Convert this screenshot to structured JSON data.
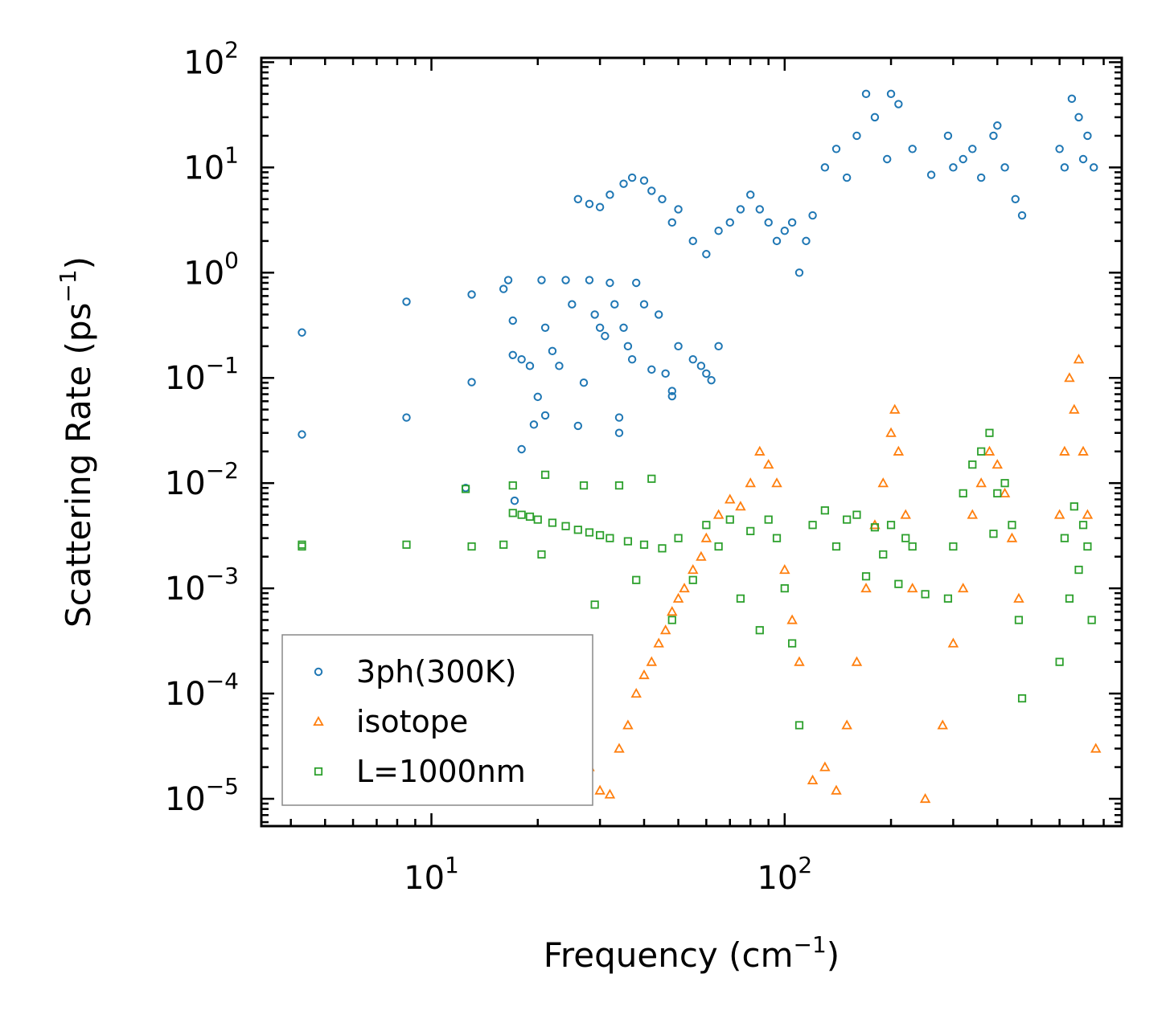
{
  "chart_data": {
    "type": "scatter",
    "title": "",
    "xlabel": "Frequency (cm",
    "xlabel_sup": "−1",
    "xlabel_end": ")",
    "ylabel": "Scattering Rate (ps",
    "ylabel_sup": "−1",
    "ylabel_end": ")",
    "xscale": "log",
    "yscale": "log",
    "xlim": [
      3.3,
      900
    ],
    "ylim": [
      5.5e-06,
      110
    ],
    "xticks": [
      {
        "value": 10,
        "base": "10",
        "exp": "1"
      },
      {
        "value": 100,
        "base": "10",
        "exp": "2"
      }
    ],
    "yticks": [
      {
        "value": 100,
        "base": "10",
        "exp": "2"
      },
      {
        "value": 10,
        "base": "10",
        "exp": "1"
      },
      {
        "value": 1,
        "base": "10",
        "exp": "0"
      },
      {
        "value": 0.1,
        "base": "10",
        "exp": "−1"
      },
      {
        "value": 0.01,
        "base": "10",
        "exp": "−2"
      },
      {
        "value": 0.001,
        "base": "10",
        "exp": "−3"
      },
      {
        "value": 0.0001,
        "base": "10",
        "exp": "−4"
      },
      {
        "value": 1e-05,
        "base": "10",
        "exp": "−5"
      }
    ],
    "legend_position": "lower-left",
    "series": [
      {
        "name": "3ph(300K)",
        "marker": "circle",
        "color": "#1f77b4",
        "points": [
          [
            4.3,
            0.27
          ],
          [
            4.3,
            0.029
          ],
          [
            8.5,
            0.53
          ],
          [
            8.5,
            0.042
          ],
          [
            12.5,
            0.009
          ],
          [
            13,
            0.62
          ],
          [
            13,
            0.091
          ],
          [
            16,
            0.7
          ],
          [
            16.5,
            0.85
          ],
          [
            17,
            0.35
          ],
          [
            17,
            0.165
          ],
          [
            17.2,
            0.0068
          ],
          [
            18,
            0.15
          ],
          [
            18,
            0.021
          ],
          [
            19,
            0.13
          ],
          [
            19.5,
            0.036
          ],
          [
            20,
            0.066
          ],
          [
            20.5,
            0.85
          ],
          [
            21,
            0.3
          ],
          [
            21,
            0.044
          ],
          [
            22,
            0.18
          ],
          [
            23,
            0.13
          ],
          [
            24,
            0.85
          ],
          [
            25,
            0.5
          ],
          [
            26,
            0.035
          ],
          [
            27,
            0.09
          ],
          [
            28,
            0.85
          ],
          [
            29,
            0.4
          ],
          [
            30,
            0.3
          ],
          [
            31,
            0.25
          ],
          [
            32,
            0.8
          ],
          [
            33,
            0.5
          ],
          [
            34,
            0.042
          ],
          [
            34,
            0.03
          ],
          [
            35,
            0.3
          ],
          [
            36,
            0.2
          ],
          [
            37,
            0.15
          ],
          [
            38,
            0.8
          ],
          [
            40,
            0.5
          ],
          [
            42,
            0.12
          ],
          [
            44,
            0.4
          ],
          [
            46,
            0.11
          ],
          [
            48,
            0.067
          ],
          [
            48,
            0.075
          ],
          [
            50,
            0.2
          ],
          [
            55,
            0.15
          ],
          [
            58,
            0.13
          ],
          [
            60,
            0.11
          ],
          [
            62,
            0.095
          ],
          [
            65,
            0.2
          ],
          [
            26,
            5.0
          ],
          [
            28,
            4.5
          ],
          [
            30,
            4.2
          ],
          [
            32,
            5.5
          ],
          [
            35,
            7.0
          ],
          [
            37,
            8.0
          ],
          [
            40,
            7.5
          ],
          [
            42,
            6.0
          ],
          [
            45,
            5.0
          ],
          [
            48,
            3.0
          ],
          [
            50,
            4.0
          ],
          [
            55,
            2.0
          ],
          [
            60,
            1.5
          ],
          [
            65,
            2.5
          ],
          [
            70,
            3.0
          ],
          [
            75,
            4.0
          ],
          [
            80,
            5.5
          ],
          [
            85,
            4.0
          ],
          [
            90,
            3.0
          ],
          [
            95,
            2.0
          ],
          [
            100,
            2.5
          ],
          [
            105,
            3.0
          ],
          [
            110,
            1.0
          ],
          [
            115,
            2.0
          ],
          [
            120,
            3.5
          ],
          [
            130,
            10.0
          ],
          [
            140,
            15.0
          ],
          [
            150,
            8.0
          ],
          [
            160,
            20.0
          ],
          [
            170,
            50.0
          ],
          [
            180,
            30.0
          ],
          [
            195,
            12.0
          ],
          [
            200,
            50.0
          ],
          [
            210,
            40.0
          ],
          [
            230,
            15.0
          ],
          [
            260,
            8.5
          ],
          [
            290,
            20.0
          ],
          [
            300,
            10.0
          ],
          [
            320,
            12.0
          ],
          [
            340,
            15.0
          ],
          [
            360,
            8.0
          ],
          [
            390,
            20.0
          ],
          [
            400,
            25.0
          ],
          [
            420,
            10.0
          ],
          [
            450,
            5.0
          ],
          [
            470,
            3.5
          ],
          [
            600,
            15.0
          ],
          [
            620,
            10.0
          ],
          [
            650,
            45.0
          ],
          [
            680,
            30.0
          ],
          [
            700,
            12.0
          ],
          [
            720,
            20.0
          ],
          [
            750,
            10.0
          ]
        ]
      },
      {
        "name": "isotope",
        "marker": "triangle",
        "color": "#ff7f0e",
        "points": [
          [
            27,
            1.2e-05
          ],
          [
            28,
            2e-05
          ],
          [
            30,
            1.2e-05
          ],
          [
            32,
            1.1e-05
          ],
          [
            34,
            3e-05
          ],
          [
            36,
            5e-05
          ],
          [
            38,
            0.0001
          ],
          [
            40,
            0.00015
          ],
          [
            42,
            0.0002
          ],
          [
            44,
            0.0003
          ],
          [
            46,
            0.0004
          ],
          [
            48,
            0.0006
          ],
          [
            50,
            0.0008
          ],
          [
            52,
            0.001
          ],
          [
            55,
            0.0015
          ],
          [
            58,
            0.002
          ],
          [
            60,
            0.003
          ],
          [
            65,
            0.005
          ],
          [
            70,
            0.007
          ],
          [
            75,
            0.006
          ],
          [
            80,
            0.01
          ],
          [
            85,
            0.02
          ],
          [
            90,
            0.015
          ],
          [
            95,
            0.01
          ],
          [
            100,
            0.0015
          ],
          [
            105,
            0.0005
          ],
          [
            110,
            0.0002
          ],
          [
            120,
            1.5e-05
          ],
          [
            130,
            2e-05
          ],
          [
            140,
            1.2e-05
          ],
          [
            150,
            5e-05
          ],
          [
            160,
            0.0002
          ],
          [
            170,
            0.001
          ],
          [
            180,
            0.004
          ],
          [
            190,
            0.01
          ],
          [
            200,
            0.03
          ],
          [
            205,
            0.05
          ],
          [
            210,
            0.02
          ],
          [
            220,
            0.005
          ],
          [
            230,
            0.001
          ],
          [
            250,
            1e-05
          ],
          [
            280,
            5e-05
          ],
          [
            300,
            0.0003
          ],
          [
            320,
            0.001
          ],
          [
            340,
            0.005
          ],
          [
            360,
            0.01
          ],
          [
            380,
            0.02
          ],
          [
            400,
            0.015
          ],
          [
            420,
            0.008
          ],
          [
            440,
            0.003
          ],
          [
            460,
            0.0008
          ],
          [
            600,
            0.005
          ],
          [
            620,
            0.02
          ],
          [
            640,
            0.1
          ],
          [
            660,
            0.05
          ],
          [
            680,
            0.15
          ],
          [
            700,
            0.02
          ],
          [
            720,
            0.005
          ],
          [
            760,
            3e-05
          ]
        ]
      },
      {
        "name": "L=1000nm",
        "marker": "square",
        "color": "#2ca02c",
        "points": [
          [
            4.3,
            0.0026
          ],
          [
            4.3,
            0.0025
          ],
          [
            8.5,
            0.0026
          ],
          [
            12.5,
            0.0088
          ],
          [
            13,
            0.0025
          ],
          [
            16,
            0.0026
          ],
          [
            17,
            0.0052
          ],
          [
            17,
            0.0095
          ],
          [
            18,
            0.005
          ],
          [
            19,
            0.0048
          ],
          [
            20,
            0.0045
          ],
          [
            20.5,
            0.0021
          ],
          [
            21,
            0.012
          ],
          [
            22,
            0.0042
          ],
          [
            24,
            0.0039
          ],
          [
            26,
            0.0036
          ],
          [
            27,
            0.0095
          ],
          [
            28,
            0.0034
          ],
          [
            29,
            0.0007
          ],
          [
            30,
            0.0032
          ],
          [
            32,
            0.003
          ],
          [
            34,
            0.0095
          ],
          [
            36,
            0.0028
          ],
          [
            38,
            0.0012
          ],
          [
            40,
            0.0026
          ],
          [
            42,
            0.011
          ],
          [
            45,
            0.0024
          ],
          [
            48,
            0.0005
          ],
          [
            50,
            0.003
          ],
          [
            55,
            0.0012
          ],
          [
            60,
            0.004
          ],
          [
            65,
            0.0025
          ],
          [
            70,
            0.0045
          ],
          [
            75,
            0.0008
          ],
          [
            80,
            0.0035
          ],
          [
            85,
            0.0004
          ],
          [
            90,
            0.0045
          ],
          [
            95,
            0.003
          ],
          [
            100,
            0.001
          ],
          [
            105,
            0.0003
          ],
          [
            110,
            5e-05
          ],
          [
            120,
            0.004
          ],
          [
            130,
            0.0055
          ],
          [
            140,
            0.0025
          ],
          [
            150,
            0.0045
          ],
          [
            160,
            0.005
          ],
          [
            170,
            0.0013
          ],
          [
            180,
            0.0038
          ],
          [
            190,
            0.0021
          ],
          [
            200,
            0.004
          ],
          [
            210,
            0.0011
          ],
          [
            220,
            0.003
          ],
          [
            230,
            0.0025
          ],
          [
            250,
            0.00088
          ],
          [
            290,
            0.0008
          ],
          [
            300,
            0.0025
          ],
          [
            320,
            0.008
          ],
          [
            340,
            0.015
          ],
          [
            360,
            0.02
          ],
          [
            380,
            0.03
          ],
          [
            390,
            0.0033
          ],
          [
            400,
            0.008
          ],
          [
            420,
            0.01
          ],
          [
            440,
            0.004
          ],
          [
            460,
            0.0005
          ],
          [
            470,
            9e-05
          ],
          [
            600,
            0.0002
          ],
          [
            620,
            0.003
          ],
          [
            640,
            0.0008
          ],
          [
            660,
            0.006
          ],
          [
            680,
            0.0015
          ],
          [
            700,
            0.004
          ],
          [
            720,
            0.0025
          ],
          [
            740,
            0.0005
          ]
        ]
      }
    ]
  }
}
